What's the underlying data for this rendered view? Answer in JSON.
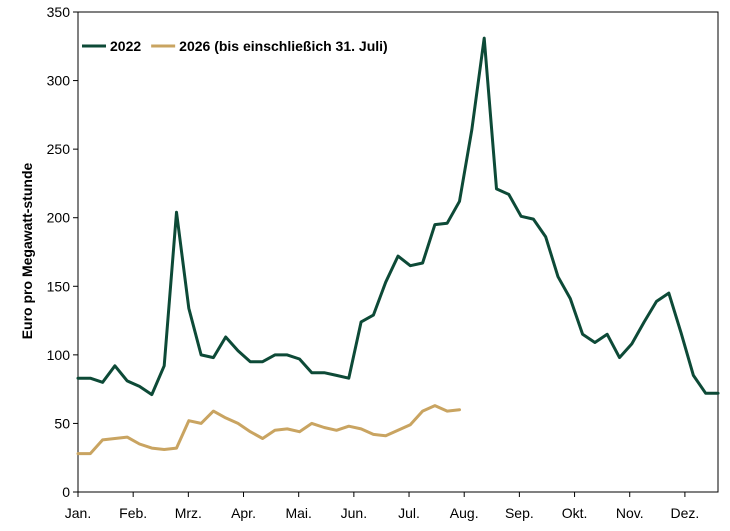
{
  "chart_data": {
    "type": "line",
    "title": "",
    "xlabel": "",
    "ylabel": "Euro pro Megawatt-stunde",
    "ylim": [
      0,
      350
    ],
    "yticks": [
      0,
      50,
      100,
      150,
      200,
      250,
      300,
      350
    ],
    "x_range_weeks": [
      0,
      52
    ],
    "month_labels": [
      "Jan.",
      "Feb.",
      "Mrz.",
      "Apr.",
      "Mai.",
      "Jun.",
      "Jul.",
      "Aug.",
      "Sep.",
      "Okt.",
      "Nov.",
      "Dez."
    ],
    "grid": false,
    "legend_position": "top-left",
    "series": [
      {
        "name": "2022",
        "color": "#0d4a37",
        "x": [
          0,
          1,
          2,
          3,
          4,
          5,
          6,
          7,
          8,
          9,
          10,
          11,
          12,
          13,
          14,
          15,
          16,
          17,
          18,
          19,
          20,
          21,
          22,
          23,
          24,
          25,
          26,
          27,
          28,
          29,
          30,
          31,
          32,
          33,
          34,
          35,
          36,
          37,
          38,
          39,
          40,
          41,
          42,
          43,
          44,
          45,
          46,
          47,
          48,
          49,
          50,
          51,
          52
        ],
        "values": [
          83,
          83,
          80,
          92,
          81,
          77,
          71,
          92,
          204,
          134,
          100,
          98,
          113,
          103,
          95,
          95,
          100,
          100,
          97,
          87,
          87,
          85,
          83,
          124,
          129,
          153,
          172,
          165,
          167,
          195,
          196,
          212,
          264,
          331,
          221,
          217,
          201,
          199,
          186,
          157,
          141,
          115,
          109,
          115,
          98,
          108,
          124,
          139,
          145,
          116,
          85,
          72,
          72
        ]
      },
      {
        "name": "2026 (bis einschließich 31. Juli)",
        "color": "#c9a461",
        "x": [
          0,
          1,
          2,
          3,
          4,
          5,
          6,
          7,
          8,
          9,
          10,
          11,
          12,
          13,
          14,
          15,
          16,
          17,
          18,
          19,
          20,
          21,
          22,
          23,
          24,
          25,
          26,
          27,
          28,
          29,
          30,
          31
        ],
        "values": [
          28,
          28,
          38,
          39,
          40,
          35,
          32,
          31,
          32,
          52,
          50,
          59,
          54,
          50,
          44,
          39,
          45,
          46,
          44,
          50,
          47,
          45,
          48,
          46,
          42,
          41,
          45,
          49,
          59,
          63,
          59,
          60
        ]
      }
    ]
  }
}
